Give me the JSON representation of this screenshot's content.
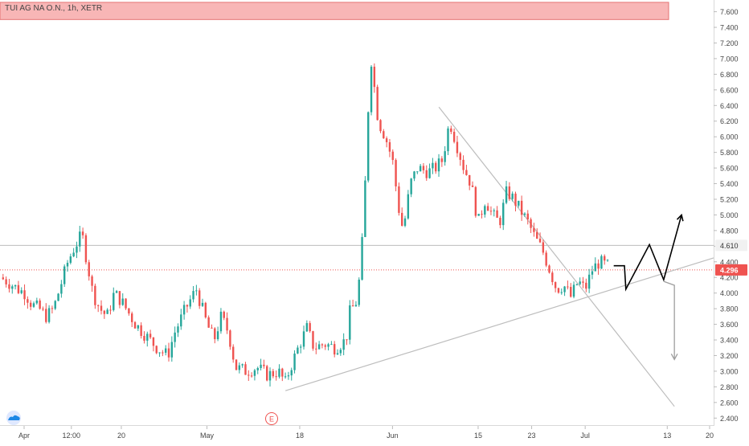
{
  "header": {
    "symbol_title": "TUI AG NA O.N., 1h, XETR"
  },
  "colors": {
    "up": "#26a69a",
    "down": "#ef5350",
    "resistance_zone": "#f8b6b6",
    "resistance_border": "#e57373",
    "current_price_line": "#ef5350",
    "level_line": "#bdbdbd",
    "trendline": "#bdbdbd",
    "projection_bull": "#000000",
    "projection_bear": "#9e9e9e",
    "axis_text": "#444444"
  },
  "icons": {
    "logo": "tradingview-cloud-icon",
    "earnings": "earnings-marker-icon"
  },
  "earnings_marker": {
    "label": "E",
    "date": "May 14"
  },
  "chart_data": {
    "type": "candlestick",
    "title": "TUI AG NA O.N., 1h, XETR",
    "ylim": [
      2.3,
      7.75
    ],
    "y_ticks": [
      "7.600",
      "7.400",
      "7.200",
      "7.000",
      "6.800",
      "6.600",
      "6.400",
      "6.200",
      "6.000",
      "5.800",
      "5.600",
      "5.400",
      "5.200",
      "5.000",
      "4.800",
      "4.600",
      "4.400",
      "4.200",
      "4.000",
      "3.800",
      "3.600",
      "3.400",
      "3.200",
      "3.000",
      "2.800",
      "2.600",
      "2.400"
    ],
    "x_ticks": [
      {
        "label": "Apr",
        "t": 0.0
      },
      {
        "label": "12:00",
        "t": 0.1
      },
      {
        "label": "20",
        "t": 0.17
      },
      {
        "label": "May",
        "t": 0.29
      },
      {
        "label": "18",
        "t": 0.42
      },
      {
        "label": "Jun",
        "t": 0.55
      },
      {
        "label": "15",
        "t": 0.67
      },
      {
        "label": "23",
        "t": 0.745
      },
      {
        "label": "Jul",
        "t": 0.82
      },
      {
        "label": "13",
        "t": 0.935
      },
      {
        "label": "20",
        "t": 1.0
      }
    ],
    "price_labels": [
      {
        "value": 4.61,
        "text": "4.610",
        "kind": "level"
      },
      {
        "value": 4.296,
        "text": "4.296",
        "kind": "last"
      }
    ],
    "resistance_zone": [
      7.5,
      7.72
    ],
    "horizontal_level": 4.61,
    "trendlines": [
      {
        "points": [
          [
            0.4,
            2.75
          ],
          [
            1.0,
            4.45
          ]
        ],
        "kind": "support"
      },
      {
        "points": [
          [
            0.615,
            6.38
          ],
          [
            0.945,
            2.55
          ]
        ],
        "kind": "resistance"
      }
    ],
    "projections": [
      {
        "kind": "bull",
        "points": [
          [
            0.86,
            4.35
          ],
          [
            0.875,
            4.35
          ],
          [
            0.877,
            4.05
          ],
          [
            0.91,
            4.62
          ],
          [
            0.93,
            4.17
          ],
          [
            0.955,
            5.0
          ]
        ]
      },
      {
        "kind": "bear",
        "points": [
          [
            0.93,
            4.15
          ],
          [
            0.945,
            4.1
          ],
          [
            0.945,
            3.15
          ]
        ]
      }
    ],
    "price_path": [
      [
        0.0,
        4.2
      ],
      [
        0.01,
        4.15
      ],
      [
        0.025,
        4.05
      ],
      [
        0.035,
        4.0
      ],
      [
        0.045,
        3.85
      ],
      [
        0.055,
        3.8
      ],
      [
        0.065,
        3.7
      ],
      [
        0.075,
        3.8
      ],
      [
        0.085,
        4.1
      ],
      [
        0.095,
        4.4
      ],
      [
        0.105,
        4.6
      ],
      [
        0.115,
        4.75
      ],
      [
        0.12,
        4.5
      ],
      [
        0.13,
        4.0
      ],
      [
        0.14,
        3.8
      ],
      [
        0.15,
        3.7
      ],
      [
        0.16,
        4.0
      ],
      [
        0.17,
        3.9
      ],
      [
        0.18,
        3.75
      ],
      [
        0.19,
        3.6
      ],
      [
        0.2,
        3.5
      ],
      [
        0.21,
        3.4
      ],
      [
        0.22,
        3.3
      ],
      [
        0.235,
        3.2
      ],
      [
        0.245,
        3.5
      ],
      [
        0.26,
        3.8
      ],
      [
        0.275,
        4.05
      ],
      [
        0.28,
        3.9
      ],
      [
        0.29,
        3.6
      ],
      [
        0.3,
        3.4
      ],
      [
        0.31,
        3.7
      ],
      [
        0.32,
        3.5
      ],
      [
        0.33,
        3.05
      ],
      [
        0.345,
        3.0
      ],
      [
        0.36,
        3.05
      ],
      [
        0.375,
        2.95
      ],
      [
        0.39,
        3.0
      ],
      [
        0.4,
        2.85
      ],
      [
        0.405,
        3.0
      ],
      [
        0.42,
        3.35
      ],
      [
        0.43,
        3.55
      ],
      [
        0.44,
        3.3
      ],
      [
        0.455,
        3.35
      ],
      [
        0.47,
        3.3
      ],
      [
        0.485,
        3.4
      ],
      [
        0.49,
        3.75
      ],
      [
        0.5,
        3.9
      ],
      [
        0.505,
        4.3
      ],
      [
        0.51,
        5.0
      ],
      [
        0.515,
        6.2
      ],
      [
        0.52,
        7.0
      ],
      [
        0.525,
        6.6
      ],
      [
        0.53,
        6.2
      ],
      [
        0.54,
        6.0
      ],
      [
        0.55,
        5.7
      ],
      [
        0.56,
        5.0
      ],
      [
        0.565,
        4.8
      ],
      [
        0.575,
        5.4
      ],
      [
        0.585,
        5.6
      ],
      [
        0.6,
        5.55
      ],
      [
        0.61,
        5.6
      ],
      [
        0.62,
        5.7
      ],
      [
        0.63,
        6.2
      ],
      [
        0.64,
        5.9
      ],
      [
        0.65,
        5.6
      ],
      [
        0.66,
        5.4
      ],
      [
        0.67,
        4.9
      ],
      [
        0.68,
        5.2
      ],
      [
        0.69,
        5.0
      ],
      [
        0.7,
        4.9
      ],
      [
        0.71,
        5.3
      ],
      [
        0.72,
        5.2
      ],
      [
        0.73,
        5.05
      ],
      [
        0.74,
        4.9
      ],
      [
        0.75,
        4.7
      ],
      [
        0.76,
        4.55
      ],
      [
        0.77,
        4.3
      ],
      [
        0.78,
        4.05
      ],
      [
        0.79,
        4.1
      ],
      [
        0.8,
        3.95
      ],
      [
        0.81,
        4.15
      ],
      [
        0.82,
        4.05
      ],
      [
        0.83,
        4.3
      ],
      [
        0.84,
        4.4
      ],
      [
        0.85,
        4.35
      ],
      [
        0.855,
        4.35
      ]
    ]
  }
}
